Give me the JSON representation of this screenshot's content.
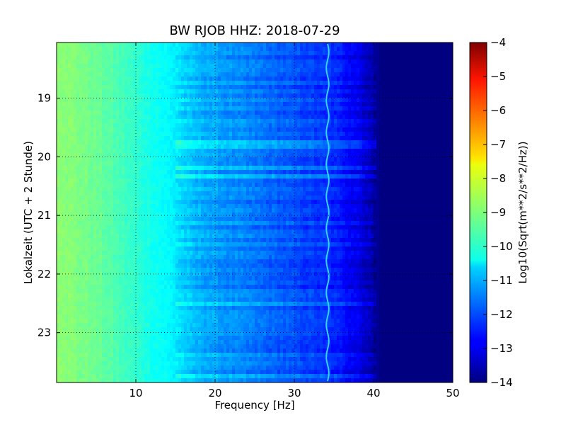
{
  "chart_data": {
    "type": "heatmap",
    "title": "BW RJOB HHZ: 2018-07-29",
    "xlabel": "Frequency [Hz]",
    "ylabel": "Lokalzeit (UTC + 2 Stunde)",
    "colorbar_label": "Log10(Sqrt(m**2/s**2/Hz))",
    "colormap": "jet",
    "xlim": [
      0,
      50
    ],
    "ylim": [
      18.05,
      23.85
    ],
    "y_inverted": true,
    "clim": [
      -14,
      -4
    ],
    "grid": true,
    "xticks": [
      10,
      20,
      30,
      40,
      50
    ],
    "xtick_labels": [
      "10",
      "20",
      "30",
      "40",
      "50"
    ],
    "yticks": [
      19,
      20,
      21,
      22,
      23
    ],
    "ytick_labels": [
      "19",
      "20",
      "21",
      "22",
      "23"
    ],
    "cbar_ticks": [
      -4,
      -5,
      -6,
      -7,
      -8,
      -9,
      -10,
      -11,
      -12,
      -13,
      -14
    ],
    "cbar_tick_labels": [
      "−4",
      "−5",
      "−6",
      "−7",
      "−8",
      "−9",
      "−10",
      "−11",
      "−12",
      "−13",
      "−14"
    ],
    "frequency_profile": [
      {
        "freq": 0,
        "log_amplitude": -8.8
      },
      {
        "freq": 5,
        "log_amplitude": -9.2
      },
      {
        "freq": 10,
        "log_amplitude": -9.8
      },
      {
        "freq": 15,
        "log_amplitude": -10.4
      },
      {
        "freq": 17,
        "log_amplitude": -10.9
      },
      {
        "freq": 20,
        "log_amplitude": -11.2
      },
      {
        "freq": 25,
        "log_amplitude": -11.6
      },
      {
        "freq": 30,
        "log_amplitude": -12.0
      },
      {
        "freq": 35,
        "log_amplitude": -12.4
      },
      {
        "freq": 38,
        "log_amplitude": -12.9
      },
      {
        "freq": 40,
        "log_amplitude": -13.6
      },
      {
        "freq": 41,
        "log_amplitude": -14.0
      },
      {
        "freq": 50,
        "log_amplitude": -14.0
      }
    ],
    "tonal_line_freq": 34.2
  }
}
